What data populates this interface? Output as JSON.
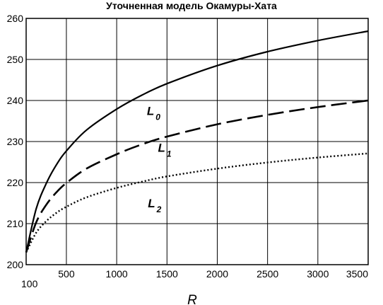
{
  "chart_data": {
    "type": "line",
    "title": "Уточненная модель Окамуры-Хата",
    "xlabel": "R",
    "ylabel": "",
    "xlim": [
      100,
      3500
    ],
    "ylim": [
      200,
      260
    ],
    "x_ticks": [
      100,
      500,
      1000,
      1500,
      2000,
      2500,
      3000,
      3500
    ],
    "y_ticks": [
      200,
      210,
      220,
      230,
      240,
      250,
      260
    ],
    "grid": true,
    "series": [
      {
        "name": "L0",
        "base": "L",
        "sub": "0",
        "style": "solid",
        "x": [
          100,
          200,
          300,
          400,
          500,
          700,
          1000,
          1250,
          1500,
          2000,
          2500,
          3000,
          3500
        ],
        "y": [
          203,
          213.6,
          219.8,
          224.3,
          227.7,
          232.8,
          237.9,
          241.3,
          244.1,
          248.5,
          251.9,
          254.6,
          256.9
        ]
      },
      {
        "name": "L1",
        "base": "L",
        "sub": "1",
        "style": "dashed",
        "x": [
          100,
          200,
          300,
          400,
          500,
          700,
          1000,
          1250,
          1500,
          2000,
          2500,
          3000,
          3500
        ],
        "y": [
          203,
          210.3,
          214.6,
          217.6,
          219.9,
          223.4,
          226.9,
          229.3,
          231.2,
          234.2,
          236.5,
          238.4,
          240
        ]
      },
      {
        "name": "L2",
        "base": "L",
        "sub": "2",
        "style": "dotted",
        "x": [
          100,
          200,
          300,
          400,
          500,
          700,
          1000,
          1250,
          1500,
          2000,
          2500,
          3000,
          3500
        ],
        "y": [
          203,
          207.8,
          210.6,
          212.6,
          214.1,
          216.4,
          218.7,
          220.2,
          221.5,
          223.4,
          224.9,
          226.1,
          227.1
        ]
      }
    ]
  }
}
